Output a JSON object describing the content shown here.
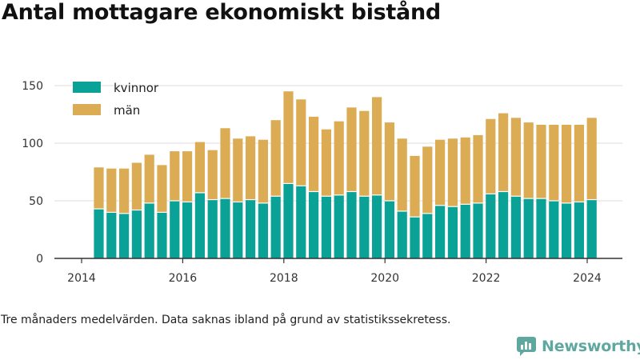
{
  "title": "Antal mottagare ekonomiskt bistånd",
  "note": "Tre månaders medelvärden. Data saknas ibland på grund av statistikssekretess.",
  "brand": {
    "name": "Newsworthy",
    "icon": "newsworthy-logo-icon",
    "color": "#5fa8a0"
  },
  "colors": {
    "kvinnor": "#0aa296",
    "man": "#dcac55",
    "grid": "#dddddd",
    "axis": "#333333"
  },
  "chart_data": {
    "type": "bar",
    "stacked": true,
    "x_ticks": [
      "2014",
      "2016",
      "2018",
      "2020",
      "2022",
      "2024"
    ],
    "y_ticks": [
      "0",
      "50",
      "100",
      "150"
    ],
    "ylim": [
      0,
      150
    ],
    "grid": true,
    "legend_position": "top-left",
    "series": [
      {
        "name": "kvinnor",
        "values": [
          43,
          40,
          39,
          42,
          48,
          40,
          50,
          49,
          57,
          51,
          52,
          49,
          51,
          48,
          54,
          65,
          63,
          58,
          54,
          55,
          58,
          54,
          55,
          50,
          41,
          36,
          39,
          46,
          45,
          47,
          48,
          56,
          58,
          54,
          52,
          52,
          50,
          48,
          49,
          51
        ]
      },
      {
        "name": "män",
        "values": [
          36,
          38,
          39,
          41,
          42,
          41,
          43,
          44,
          44,
          43,
          61,
          55,
          55,
          55,
          66,
          80,
          75,
          65,
          58,
          64,
          73,
          74,
          85,
          68,
          63,
          53,
          58,
          57,
          59,
          58,
          59,
          65,
          68,
          68,
          66,
          64,
          66,
          68,
          67,
          71
        ]
      }
    ]
  }
}
